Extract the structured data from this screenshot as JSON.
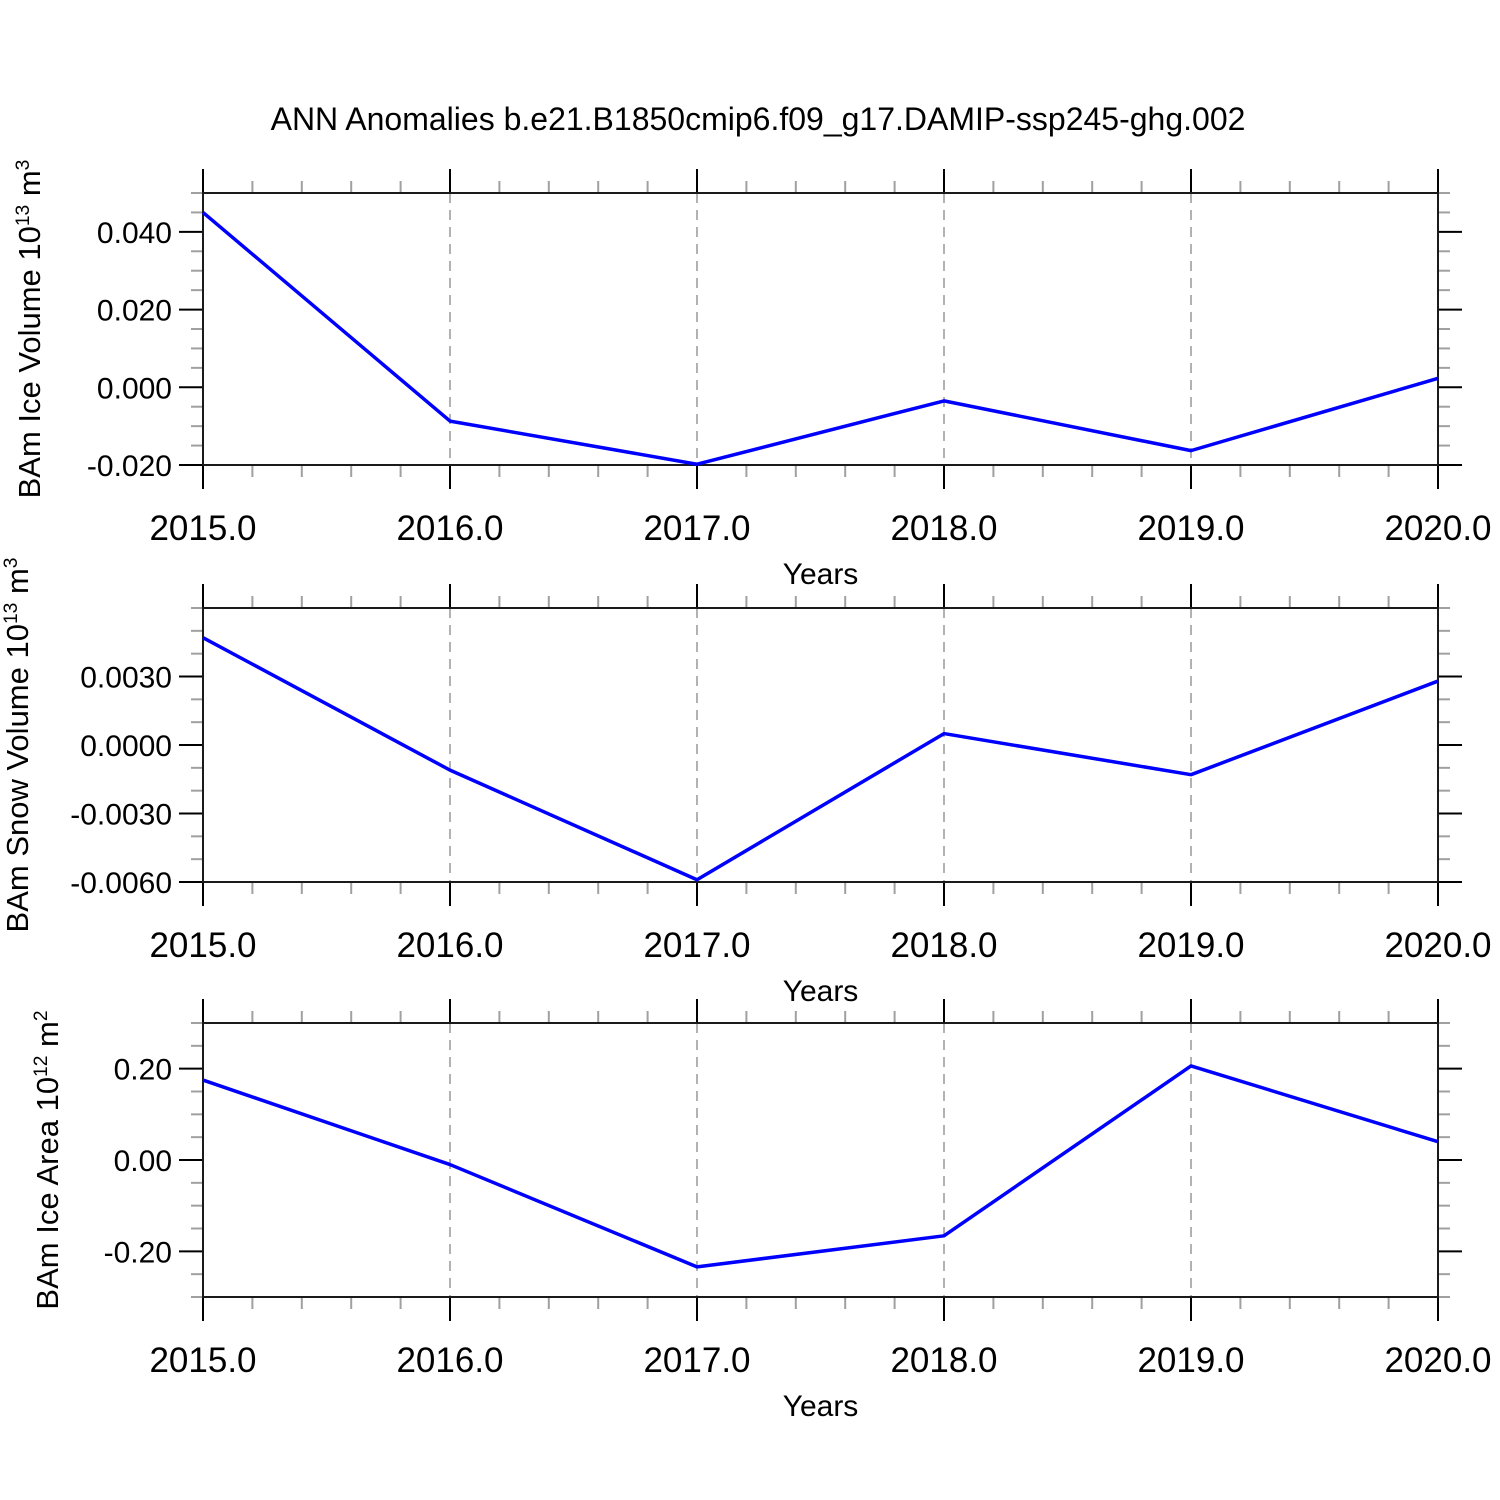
{
  "page": {
    "title": "ANN Anomalies b.e21.B1850cmip6.f09_g17.DAMIP-ssp245-ghg.002"
  },
  "colors": {
    "line": "#0000ff",
    "frame": "#1a1a1a",
    "major_tick": "#000000",
    "minor_tick": "#a0a0a0",
    "grid": "#999999",
    "text": "#000000"
  },
  "chart_data": [
    {
      "type": "line",
      "name": "ice-volume",
      "xlabel": "Years",
      "ylabel_parts": [
        {
          "text": "BAm Ice Volume 10"
        },
        {
          "text": "13",
          "sup": true
        },
        {
          "text": " m"
        },
        {
          "text": "3",
          "sup": true
        }
      ],
      "x": [
        2015.0,
        2016.0,
        2017.0,
        2018.0,
        2019.0,
        2020.0
      ],
      "values": [
        0.045,
        -0.0087,
        -0.0198,
        -0.0035,
        -0.0163,
        0.0023
      ],
      "xlim": [
        2015.0,
        2020.0
      ],
      "ylim": [
        -0.02,
        0.05
      ],
      "xticks": [
        {
          "v": 2015.0,
          "label": "2015.0"
        },
        {
          "v": 2016.0,
          "label": "2016.0"
        },
        {
          "v": 2017.0,
          "label": "2017.0"
        },
        {
          "v": 2018.0,
          "label": "2018.0"
        },
        {
          "v": 2019.0,
          "label": "2019.0"
        },
        {
          "v": 2020.0,
          "label": "2020.0"
        }
      ],
      "yticks": [
        {
          "v": 0.04,
          "label": "0.040"
        },
        {
          "v": 0.02,
          "label": "0.020"
        },
        {
          "v": 0.0,
          "label": "0.000"
        },
        {
          "v": -0.02,
          "label": "-0.020"
        }
      ],
      "x_minor_step": 0.2,
      "y_minor_step": 0.005,
      "grid_x": [
        2016.0,
        2017.0,
        2018.0,
        2019.0
      ],
      "legend": "none",
      "grid": "vertical-dashed"
    },
    {
      "type": "line",
      "name": "snow-volume",
      "xlabel": "Years",
      "ylabel_parts": [
        {
          "text": "BAm Snow Volume 10"
        },
        {
          "text": "13",
          "sup": true
        },
        {
          "text": " m"
        },
        {
          "text": "3",
          "sup": true
        }
      ],
      "x": [
        2015.0,
        2016.0,
        2017.0,
        2018.0,
        2019.0,
        2020.0
      ],
      "values": [
        0.0047,
        -0.0011,
        -0.0059,
        0.0005,
        -0.0013,
        0.0028
      ],
      "xlim": [
        2015.0,
        2020.0
      ],
      "ylim": [
        -0.006,
        0.006
      ],
      "xticks": [
        {
          "v": 2015.0,
          "label": "2015.0"
        },
        {
          "v": 2016.0,
          "label": "2016.0"
        },
        {
          "v": 2017.0,
          "label": "2017.0"
        },
        {
          "v": 2018.0,
          "label": "2018.0"
        },
        {
          "v": 2019.0,
          "label": "2019.0"
        },
        {
          "v": 2020.0,
          "label": "2020.0"
        }
      ],
      "yticks": [
        {
          "v": 0.003,
          "label": "0.0030"
        },
        {
          "v": 0.0,
          "label": "0.0000"
        },
        {
          "v": -0.003,
          "label": "-0.0030"
        },
        {
          "v": -0.006,
          "label": "-0.0060"
        }
      ],
      "x_minor_step": 0.2,
      "y_minor_step": 0.001,
      "grid_x": [
        2016.0,
        2017.0,
        2018.0,
        2019.0
      ],
      "legend": "none",
      "grid": "vertical-dashed"
    },
    {
      "type": "line",
      "name": "ice-area",
      "xlabel": "Years",
      "ylabel_parts": [
        {
          "text": "BAm Ice Area 10"
        },
        {
          "text": "12",
          "sup": true
        },
        {
          "text": " m"
        },
        {
          "text": "2",
          "sup": true
        }
      ],
      "x": [
        2015.0,
        2016.0,
        2017.0,
        2018.0,
        2019.0,
        2020.0
      ],
      "values": [
        0.175,
        -0.01,
        -0.234,
        -0.166,
        0.206,
        0.04
      ],
      "xlim": [
        2015.0,
        2020.0
      ],
      "ylim": [
        -0.3,
        0.3
      ],
      "xticks": [
        {
          "v": 2015.0,
          "label": "2015.0"
        },
        {
          "v": 2016.0,
          "label": "2016.0"
        },
        {
          "v": 2017.0,
          "label": "2017.0"
        },
        {
          "v": 2018.0,
          "label": "2018.0"
        },
        {
          "v": 2019.0,
          "label": "2019.0"
        },
        {
          "v": 2020.0,
          "label": "2020.0"
        }
      ],
      "yticks": [
        {
          "v": 0.2,
          "label": "0.20"
        },
        {
          "v": 0.0,
          "label": "0.00"
        },
        {
          "v": -0.2,
          "label": "-0.20"
        }
      ],
      "x_minor_step": 0.2,
      "y_minor_step": 0.05,
      "grid_x": [
        2016.0,
        2017.0,
        2018.0,
        2019.0
      ],
      "legend": "none",
      "grid": "vertical-dashed"
    }
  ]
}
